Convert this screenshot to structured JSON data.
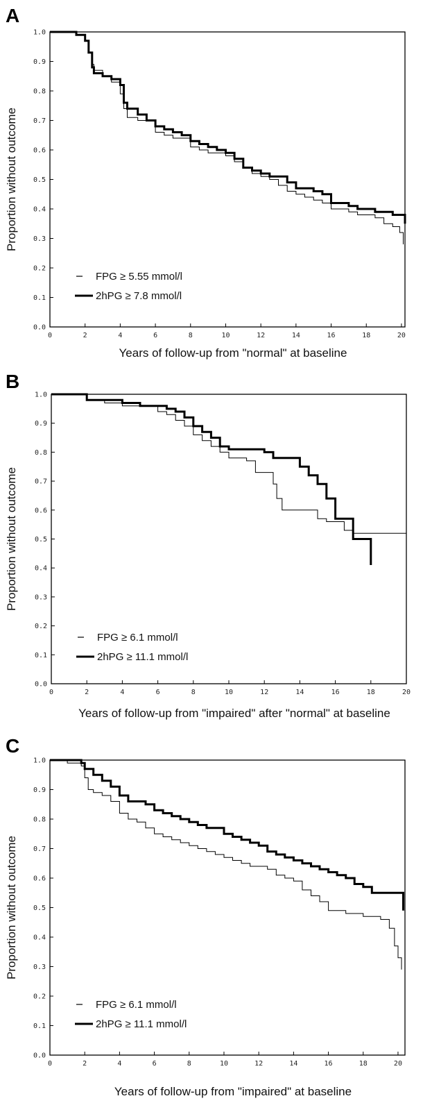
{
  "chart_data": [
    {
      "type": "line",
      "panel": "A",
      "title": "",
      "xlabel": "Years of follow-up from \"normal\" at baseline",
      "ylabel": "Proportion without outcome",
      "xlim": [
        0,
        20.2
      ],
      "ylim": [
        0,
        1.0
      ],
      "x_ticks": [
        0,
        2,
        4,
        6,
        8,
        10,
        12,
        14,
        16,
        18,
        20
      ],
      "y_ticks": [
        "0.0",
        "0.1",
        "0.2",
        "0.3",
        "0.4",
        "0.5",
        "0.6",
        "0.7",
        "0.8",
        "0.9",
        "1.0"
      ],
      "grid": false,
      "legend_position": "bottom-left",
      "series": [
        {
          "name": "FPG ≥ 5.55 mmol/l",
          "style": "thin",
          "x": [
            0,
            1.0,
            1.5,
            2.0,
            2.2,
            2.4,
            2.5,
            3.0,
            3.5,
            4.0,
            4.2,
            4.4,
            5.0,
            5.5,
            6.0,
            6.5,
            7.0,
            7.5,
            8.0,
            8.5,
            9.0,
            9.5,
            10.0,
            10.5,
            11.0,
            11.5,
            12.0,
            12.5,
            13.0,
            13.5,
            14.0,
            14.5,
            15.0,
            15.5,
            16.0,
            16.5,
            17.0,
            17.5,
            18.0,
            18.5,
            19.0,
            19.5,
            19.9,
            20.1
          ],
          "y": [
            1.0,
            1.0,
            0.99,
            0.97,
            0.93,
            0.89,
            0.87,
            0.85,
            0.83,
            0.79,
            0.74,
            0.71,
            0.7,
            0.7,
            0.66,
            0.65,
            0.64,
            0.64,
            0.61,
            0.6,
            0.59,
            0.59,
            0.58,
            0.56,
            0.54,
            0.52,
            0.51,
            0.5,
            0.48,
            0.46,
            0.45,
            0.44,
            0.43,
            0.42,
            0.4,
            0.4,
            0.39,
            0.38,
            0.38,
            0.37,
            0.35,
            0.34,
            0.32,
            0.28
          ]
        },
        {
          "name": "2hPG ≥ 7.8 mmol/l",
          "style": "thick",
          "x": [
            0,
            1.0,
            1.5,
            2.0,
            2.2,
            2.4,
            2.5,
            3.0,
            3.5,
            4.0,
            4.2,
            4.4,
            5.0,
            5.5,
            6.0,
            6.5,
            7.0,
            7.5,
            8.0,
            8.5,
            9.0,
            9.5,
            10.0,
            10.5,
            11.0,
            11.5,
            12.0,
            12.5,
            13.0,
            13.5,
            14.0,
            14.5,
            15.0,
            15.5,
            16.0,
            16.5,
            17.0,
            17.5,
            18.0,
            18.5,
            19.0,
            19.5,
            20.0,
            20.2
          ],
          "y": [
            1.0,
            1.0,
            0.99,
            0.97,
            0.93,
            0.88,
            0.86,
            0.85,
            0.84,
            0.82,
            0.76,
            0.74,
            0.72,
            0.7,
            0.68,
            0.67,
            0.66,
            0.65,
            0.63,
            0.62,
            0.61,
            0.6,
            0.59,
            0.57,
            0.54,
            0.53,
            0.52,
            0.51,
            0.51,
            0.49,
            0.47,
            0.47,
            0.46,
            0.45,
            0.42,
            0.42,
            0.41,
            0.4,
            0.4,
            0.39,
            0.39,
            0.38,
            0.38,
            0.35
          ]
        }
      ]
    },
    {
      "type": "line",
      "panel": "B",
      "title": "",
      "xlabel": "Years of follow-up from \"impaired\" after \"normal\" at baseline",
      "ylabel": "Proportion without outcome",
      "xlim": [
        0,
        20
      ],
      "ylim": [
        0,
        1.0
      ],
      "x_ticks": [
        0,
        2,
        4,
        6,
        8,
        10,
        12,
        14,
        16,
        18,
        20
      ],
      "y_ticks": [
        "0.0",
        "0.1",
        "0.2",
        "0.3",
        "0.4",
        "0.5",
        "0.6",
        "0.7",
        "0.8",
        "0.9",
        "1.0"
      ],
      "grid": false,
      "legend_position": "bottom-left",
      "series": [
        {
          "name": "FPG ≥ 6.1 mmol/l",
          "style": "thin",
          "x": [
            0,
            1.5,
            2.0,
            3.0,
            4.0,
            5.0,
            6.0,
            6.5,
            7.0,
            7.5,
            8.0,
            8.5,
            9.0,
            9.5,
            10.0,
            10.5,
            11.0,
            11.5,
            12.0,
            12.5,
            12.7,
            13.0,
            13.5,
            14.0,
            14.5,
            15.0,
            15.5,
            16.0,
            16.5,
            17.0,
            18.0,
            19.0,
            20.0,
            20.0
          ],
          "y": [
            1.0,
            1.0,
            0.98,
            0.97,
            0.96,
            0.96,
            0.94,
            0.93,
            0.91,
            0.89,
            0.86,
            0.84,
            0.82,
            0.8,
            0.78,
            0.78,
            0.77,
            0.73,
            0.73,
            0.69,
            0.64,
            0.6,
            0.6,
            0.6,
            0.6,
            0.57,
            0.56,
            0.56,
            0.53,
            0.52,
            0.52,
            0.52,
            0.52,
            0.0
          ]
        },
        {
          "name": "2hPG ≥ 11.1 mmol/l",
          "style": "thick",
          "x": [
            0,
            1.5,
            2.0,
            3.0,
            4.0,
            5.0,
            6.0,
            6.5,
            7.0,
            7.5,
            8.0,
            8.5,
            9.0,
            9.5,
            10.0,
            10.5,
            11.0,
            11.5,
            12.0,
            12.5,
            13.0,
            13.5,
            14.0,
            14.5,
            15.0,
            15.5,
            16.0,
            16.5,
            17.0,
            17.5,
            18.0,
            18.0
          ],
          "y": [
            1.0,
            1.0,
            0.98,
            0.98,
            0.97,
            0.96,
            0.96,
            0.95,
            0.94,
            0.92,
            0.89,
            0.87,
            0.85,
            0.82,
            0.81,
            0.81,
            0.81,
            0.81,
            0.8,
            0.78,
            0.78,
            0.78,
            0.75,
            0.72,
            0.69,
            0.64,
            0.57,
            0.57,
            0.5,
            0.5,
            0.5,
            0.41
          ]
        }
      ]
    },
    {
      "type": "line",
      "panel": "C",
      "title": "",
      "xlabel": "Years of follow-up from \"impaired\" at baseline",
      "ylabel": "Proportion without outcome",
      "xlim": [
        0,
        20.4
      ],
      "ylim": [
        0,
        1.0
      ],
      "x_ticks": [
        0,
        2,
        4,
        6,
        8,
        10,
        12,
        14,
        16,
        18,
        20
      ],
      "y_ticks": [
        "0.0",
        "0.1",
        "0.2",
        "0.3",
        "0.4",
        "0.5",
        "0.6",
        "0.7",
        "0.8",
        "0.9",
        "1.0"
      ],
      "grid": false,
      "legend_position": "bottom-left",
      "series": [
        {
          "name": "FPG ≥ 6.1 mmol/l",
          "style": "thin",
          "x": [
            0,
            1.0,
            1.8,
            2.0,
            2.2,
            2.5,
            3.0,
            3.5,
            4.0,
            4.5,
            5.0,
            5.5,
            6.0,
            6.5,
            7.0,
            7.5,
            8.0,
            8.5,
            9.0,
            9.5,
            10.0,
            10.5,
            11.0,
            11.5,
            12.0,
            12.5,
            13.0,
            13.5,
            14.0,
            14.5,
            15.0,
            15.5,
            16.0,
            16.5,
            17.0,
            17.5,
            18.0,
            18.5,
            19.0,
            19.5,
            19.8,
            20.0,
            20.2
          ],
          "y": [
            1.0,
            0.99,
            0.98,
            0.94,
            0.9,
            0.89,
            0.88,
            0.86,
            0.82,
            0.8,
            0.79,
            0.77,
            0.75,
            0.74,
            0.73,
            0.72,
            0.71,
            0.7,
            0.69,
            0.68,
            0.67,
            0.66,
            0.65,
            0.64,
            0.64,
            0.63,
            0.61,
            0.6,
            0.59,
            0.56,
            0.54,
            0.52,
            0.49,
            0.49,
            0.48,
            0.48,
            0.47,
            0.47,
            0.46,
            0.43,
            0.37,
            0.33,
            0.29
          ]
        },
        {
          "name": "2hPG ≥ 11.1 mmol/l",
          "style": "thick",
          "x": [
            0,
            1.0,
            1.8,
            2.0,
            2.5,
            3.0,
            3.5,
            4.0,
            4.5,
            5.0,
            5.5,
            6.0,
            6.5,
            7.0,
            7.5,
            8.0,
            8.5,
            9.0,
            9.5,
            10.0,
            10.5,
            11.0,
            11.5,
            12.0,
            12.5,
            13.0,
            13.5,
            14.0,
            14.5,
            15.0,
            15.5,
            16.0,
            16.5,
            17.0,
            17.5,
            18.0,
            18.5,
            19.0,
            19.5,
            20.0,
            20.3
          ],
          "y": [
            1.0,
            1.0,
            0.99,
            0.97,
            0.95,
            0.93,
            0.91,
            0.88,
            0.86,
            0.86,
            0.85,
            0.83,
            0.82,
            0.81,
            0.8,
            0.79,
            0.78,
            0.77,
            0.77,
            0.75,
            0.74,
            0.73,
            0.72,
            0.71,
            0.69,
            0.68,
            0.67,
            0.66,
            0.65,
            0.64,
            0.63,
            0.62,
            0.61,
            0.6,
            0.58,
            0.57,
            0.55,
            0.55,
            0.55,
            0.55,
            0.49
          ]
        }
      ]
    }
  ]
}
